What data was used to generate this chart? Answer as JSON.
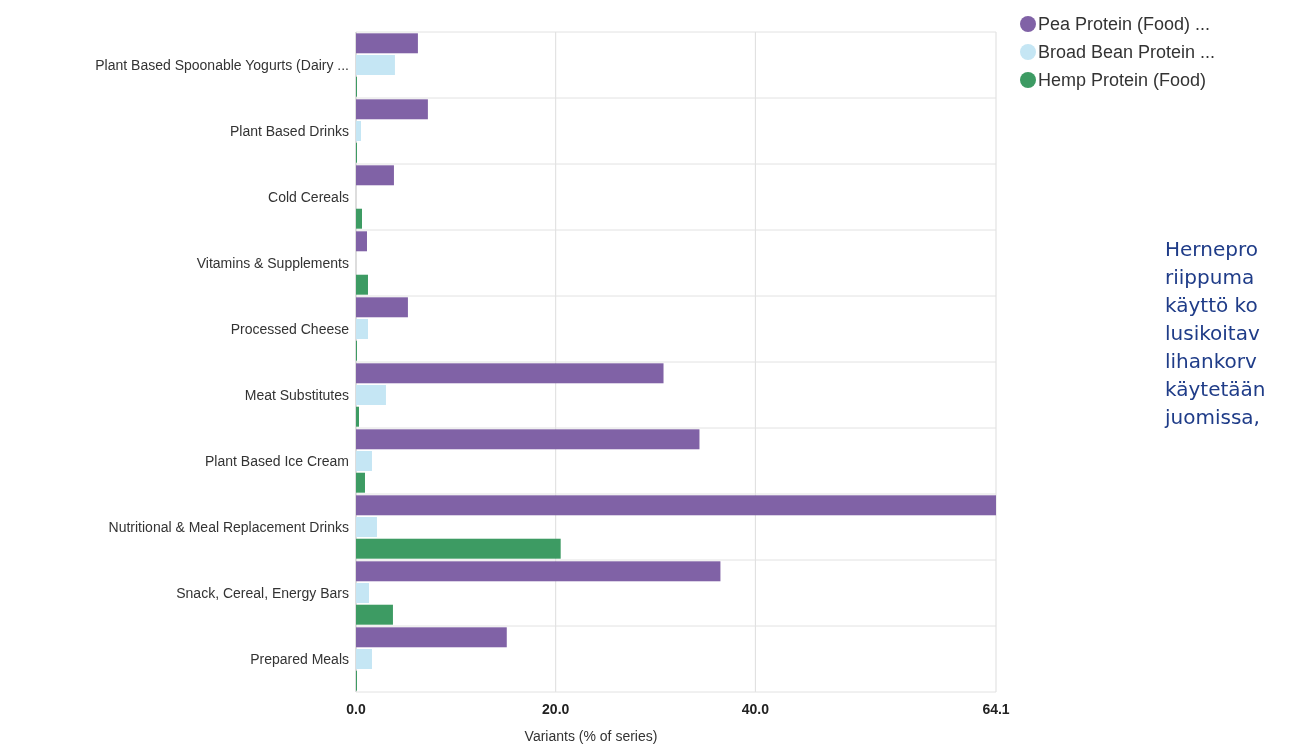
{
  "chart_data": {
    "type": "bar",
    "orientation": "horizontal",
    "categories": [
      "Plant Based Spoonable Yogurts (Dairy ...",
      "Plant Based Drinks",
      "Cold Cereals",
      "Vitamins & Supplements",
      "Processed Cheese",
      "Meat Substitutes",
      "Plant Based Ice Cream",
      "Nutritional & Meal Replacement Drinks",
      "Snack, Cereal, Energy Bars",
      "Prepared Meals"
    ],
    "series": [
      {
        "name": "Pea Protein (Food) ...",
        "color": "#8062a6",
        "values": [
          6.2,
          7.2,
          3.8,
          1.1,
          5.2,
          30.8,
          34.4,
          64.1,
          36.5,
          15.1
        ]
      },
      {
        "name": "Broad Bean Protein ...",
        "color": "#c5e6f4",
        "values": [
          3.9,
          0.5,
          0,
          0,
          1.2,
          3.0,
          1.6,
          2.1,
          1.3,
          1.6
        ]
      },
      {
        "name": "Hemp Protein (Food)",
        "color": "#3d9b63",
        "values": [
          0.1,
          0.1,
          0.6,
          1.2,
          0.1,
          0.3,
          0.9,
          20.5,
          3.7,
          0.1
        ]
      }
    ],
    "xlim": [
      0,
      64.1
    ],
    "xticks": [
      {
        "value": 0,
        "label": "0.0"
      },
      {
        "value": 20,
        "label": "20.0"
      },
      {
        "value": 40,
        "label": "40.0"
      },
      {
        "value": 64.1,
        "label": "64.1"
      }
    ],
    "xlabel": "Variants (% of series)",
    "grid": true,
    "legend": "top right",
    "annotations": [
      "Hernepro\nriippuma\nkäyttö ko\nlusikoitav\nlihankorv\nkäytetään\njuomissa,"
    ]
  }
}
